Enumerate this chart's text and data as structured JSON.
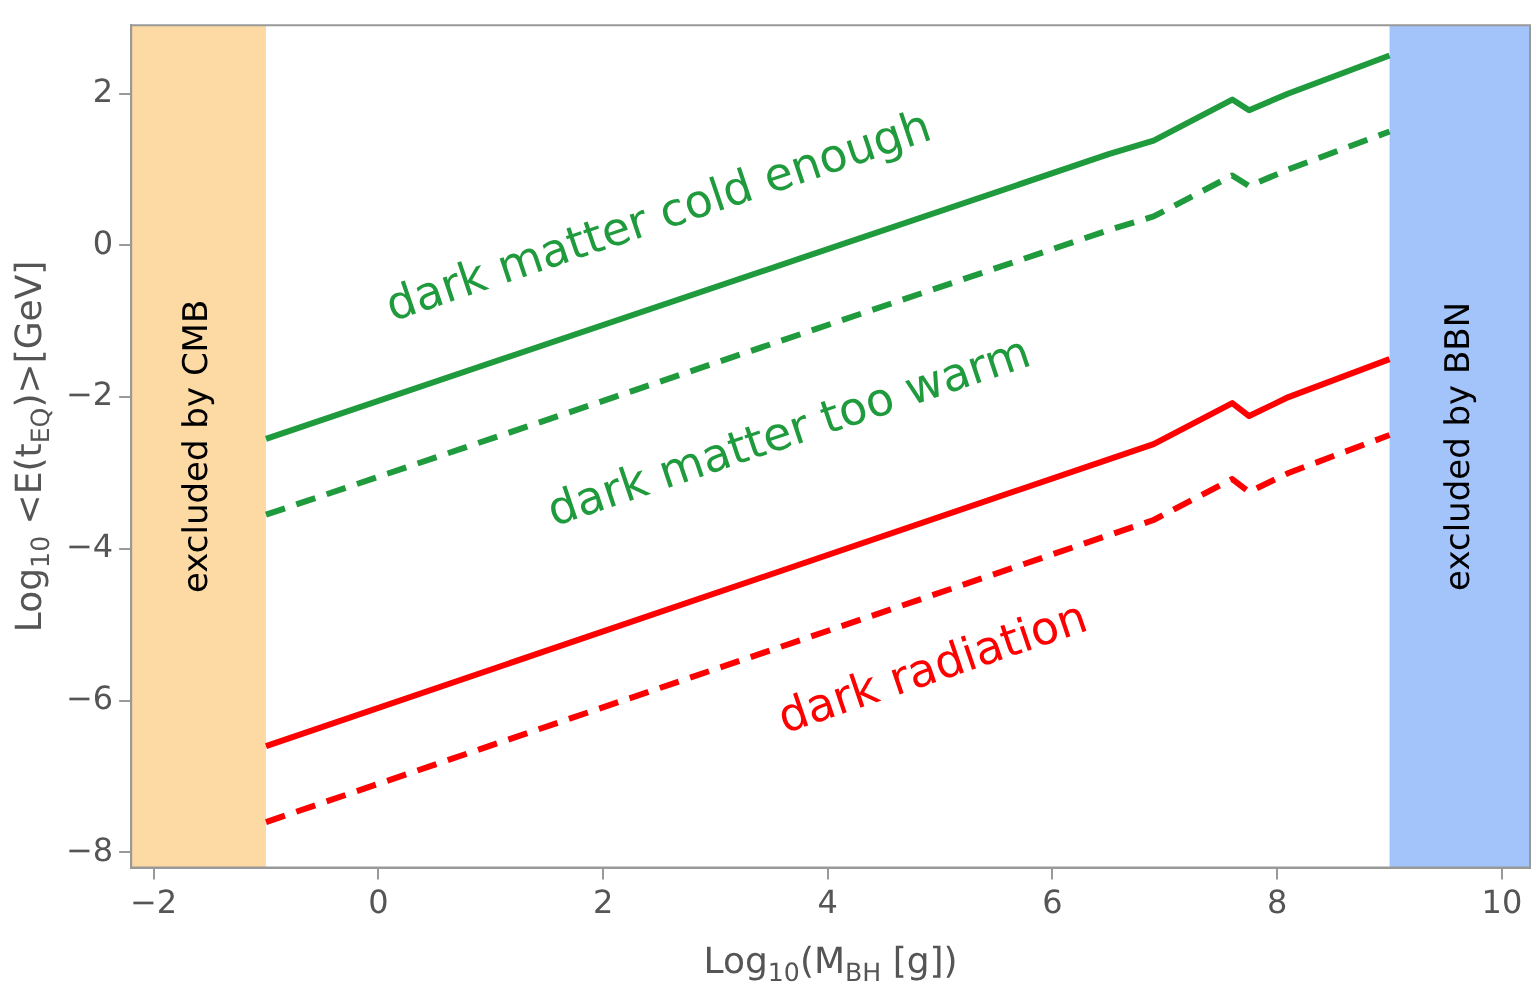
{
  "chart_data": {
    "type": "line",
    "xlabel": "Log$_{10}$(M$_{BH}$ [g])",
    "ylabel": "Log$_{10}$ <E(t$_{EQ}$)>[GeV]",
    "series": [
      {
        "color": "#1f9a3c",
        "line_style": "solid",
        "x": [
          -1,
          6.5,
          6.9,
          7.6,
          7.75,
          8.1,
          9
        ],
        "values": [
          -2.55,
          1.2,
          1.38,
          1.92,
          1.78,
          2.0,
          2.5
        ]
      },
      {
        "color": "#1f9a3c",
        "line_style": "dashed",
        "x": [
          -1,
          6.5,
          6.9,
          7.6,
          7.75,
          8.1,
          9
        ],
        "values": [
          -3.55,
          0.2,
          0.38,
          0.92,
          0.78,
          1.0,
          1.5
        ]
      },
      {
        "color": "#ff0000",
        "line_style": "solid",
        "x": [
          -1,
          6.5,
          6.9,
          7.6,
          7.75,
          8.1,
          9
        ],
        "values": [
          -6.6,
          -2.82,
          -2.62,
          -2.08,
          -2.25,
          -2.0,
          -1.5
        ]
      },
      {
        "color": "#ff0000",
        "line_style": "dashed",
        "x": [
          -1,
          6.5,
          6.9,
          7.6,
          7.75,
          8.1,
          9
        ],
        "values": [
          -7.6,
          -3.82,
          -3.62,
          -3.08,
          -3.25,
          -3.0,
          -2.5
        ]
      }
    ],
    "annotations": [
      "dark matter cold enough",
      "dark matter too warm",
      "dark radiation"
    ],
    "bands": [
      {
        "axis": "x",
        "from": -2.2,
        "to": -1,
        "label": "excluded by CMB",
        "color": "#fdd9a3"
      },
      {
        "axis": "x",
        "from": 9,
        "to": 10.25,
        "label": "excluded by BBN",
        "color": "#a3c4fb"
      }
    ],
    "xlim": [
      -2.2,
      10.25
    ],
    "xticks": [
      -2,
      0,
      2,
      4,
      6,
      8,
      10
    ],
    "ylim": [
      -8.2,
      2.9
    ],
    "yticks": [
      -8,
      -6,
      -4,
      -2,
      0,
      2
    ],
    "grid": false,
    "legend": false,
    "marker": "none"
  }
}
